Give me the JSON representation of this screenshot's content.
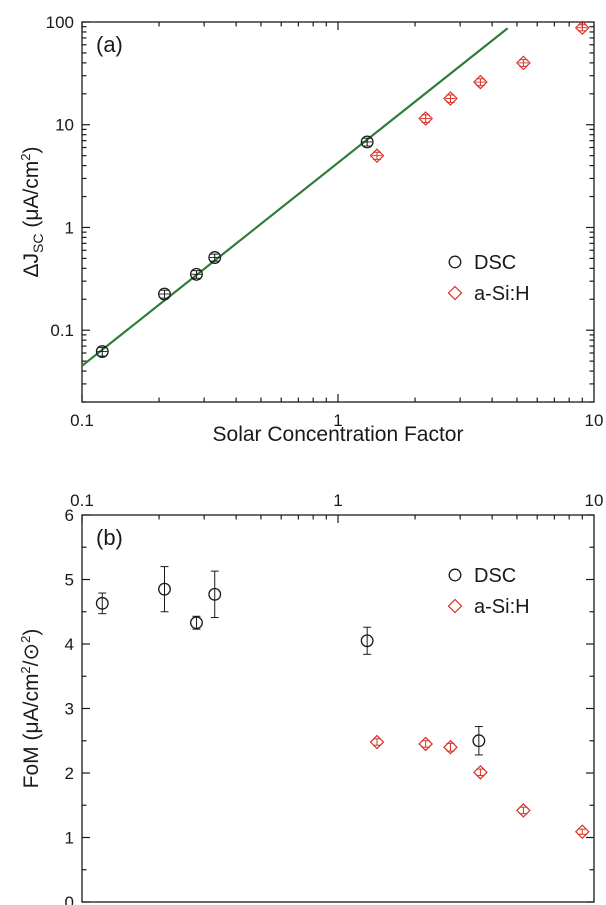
{
  "chart_data": [
    {
      "panel_label": "(a)",
      "type": "scatter",
      "x_scale": "log",
      "y_scale": "log",
      "xlim": [
        0.1,
        10
      ],
      "ylim": [
        0.02,
        100
      ],
      "xlabel": "Solar Concentration Factor",
      "ylabel_prefix": "ΔJ",
      "ylabel_subscript": "SC",
      "ylabel_unit_open": " (μA/cm",
      "ylabel_unit_sup": "2",
      "ylabel_unit_close": ")",
      "x_ticks": [
        0.1,
        1,
        10
      ],
      "x_tick_labels": [
        "0.1",
        "1",
        "10"
      ],
      "y_ticks": [
        0.1,
        1,
        10,
        100
      ],
      "y_tick_labels": [
        "0.1",
        "1",
        "10",
        "100"
      ],
      "legend_position": "center-right",
      "series": [
        {
          "name": "DSC",
          "marker": "circle",
          "color": "#1a1a1a",
          "points": [
            {
              "x": 0.12,
              "y": 0.062,
              "err": 0.006
            },
            {
              "x": 0.21,
              "y": 0.225,
              "err": 0.02
            },
            {
              "x": 0.28,
              "y": 0.35,
              "err": 0.03
            },
            {
              "x": 0.33,
              "y": 0.51,
              "err": 0.04
            },
            {
              "x": 1.3,
              "y": 6.8,
              "err": 0.6
            }
          ]
        },
        {
          "name": "a-Si:H",
          "marker": "diamond",
          "color": "#d93025",
          "points": [
            {
              "x": 1.42,
              "y": 5.0,
              "err": 0.4
            },
            {
              "x": 2.2,
              "y": 11.5,
              "err": 1.0
            },
            {
              "x": 2.75,
              "y": 18.0,
              "err": 1.5
            },
            {
              "x": 3.6,
              "y": 26.0,
              "err": 2.0
            },
            {
              "x": 5.3,
              "y": 40.0,
              "err": 3.0
            },
            {
              "x": 9.0,
              "y": 88.0,
              "err": 6.0
            }
          ]
        }
      ],
      "fit_line": {
        "color": "#2e7d3a",
        "points": [
          {
            "x": 0.1,
            "y": 0.045
          },
          {
            "x": 4.6,
            "y": 87.0
          }
        ]
      }
    },
    {
      "panel_label": "(b)",
      "type": "scatter",
      "x_scale": "log",
      "y_scale": "linear",
      "xlim": [
        0.1,
        10
      ],
      "ylim": [
        0,
        6
      ],
      "x_axis_position": "top",
      "ylabel": "FoM (μA/cm²/⊙²)",
      "ylabel_main": "FoM (μA/cm",
      "ylabel_sup1": "2",
      "ylabel_mid": "/⊙",
      "ylabel_sup2": "2",
      "ylabel_close": ")",
      "x_ticks": [
        0.1,
        1,
        10
      ],
      "x_tick_labels": [
        "0.1",
        "1",
        "10"
      ],
      "y_ticks": [
        0,
        1,
        2,
        3,
        4,
        5,
        6
      ],
      "y_tick_labels": [
        "0",
        "1",
        "2",
        "3",
        "4",
        "5",
        "6"
      ],
      "legend_position": "top-right",
      "series": [
        {
          "name": "DSC",
          "marker": "circle",
          "color": "#1a1a1a",
          "points": [
            {
              "x": 0.12,
              "y": 4.63,
              "err": 0.16
            },
            {
              "x": 0.21,
              "y": 4.85,
              "err": 0.35
            },
            {
              "x": 0.28,
              "y": 4.33,
              "err": 0.1
            },
            {
              "x": 0.33,
              "y": 4.77,
              "err": 0.36
            },
            {
              "x": 1.3,
              "y": 4.05,
              "err": 0.21
            },
            {
              "x": 3.55,
              "y": 2.5,
              "err": 0.22
            }
          ]
        },
        {
          "name": "a-Si:H",
          "marker": "diamond",
          "color": "#d93025",
          "points": [
            {
              "x": 1.42,
              "y": 2.48,
              "err": 0.05
            },
            {
              "x": 2.2,
              "y": 2.45,
              "err": 0.05
            },
            {
              "x": 2.75,
              "y": 2.4,
              "err": 0.06
            },
            {
              "x": 3.6,
              "y": 2.01,
              "err": 0.05
            },
            {
              "x": 5.3,
              "y": 1.42,
              "err": 0.05
            },
            {
              "x": 9.0,
              "y": 1.09,
              "err": 0.04
            }
          ]
        }
      ]
    }
  ]
}
